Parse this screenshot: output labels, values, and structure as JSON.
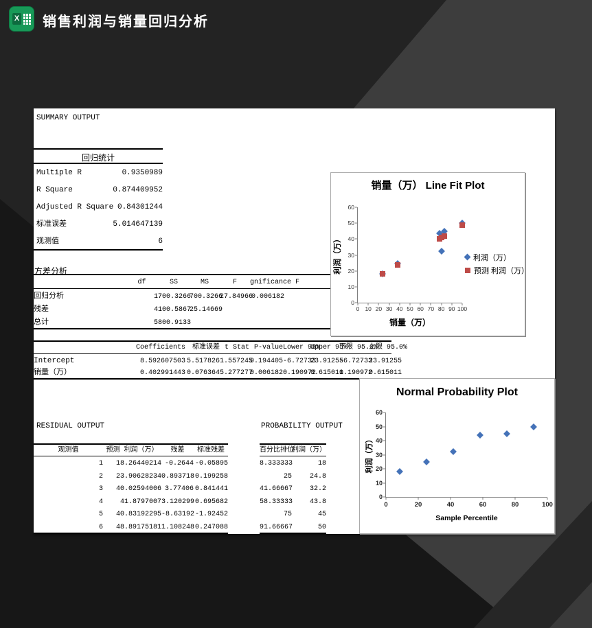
{
  "header": {
    "title": "销售利润与销量回归分析",
    "app_icon": "excel-icon"
  },
  "colors": {
    "excel_green": "#189a58",
    "series_blue": "#4472B8",
    "series_red": "#BE4B48",
    "axis_gray": "#7f7f7f",
    "background_dark": "#232323",
    "background_mid": "#3d3d3d"
  },
  "summary": {
    "section_title": "SUMMARY OUTPUT",
    "table_title": "回归统计",
    "rows": [
      [
        "Multiple R",
        "0.9350989"
      ],
      [
        "R Square",
        "0.874409952"
      ],
      [
        "Adjusted R Square",
        "0.84301244"
      ],
      [
        "标准误差",
        "5.014647139"
      ],
      [
        "观测值",
        "6"
      ]
    ]
  },
  "anova": {
    "section_title": "方差分析",
    "headers": [
      "",
      "df",
      "SS",
      "MS",
      "F",
      "gnificance F"
    ],
    "rows": [
      [
        "回归分析",
        "1",
        "700.3266",
        "700.3266",
        "27.84966",
        "0.006182"
      ],
      [
        "残差",
        "4",
        "100.5867",
        "25.14669",
        "",
        ""
      ],
      [
        "总计",
        "5",
        "800.9133",
        "",
        "",
        ""
      ]
    ]
  },
  "coefficients": {
    "headers": [
      "",
      "Coefficients",
      "标准误差",
      "t Stat",
      "P-value",
      "Lower 95%",
      "Upper 95%",
      "下限 95.0%",
      "上限 95.0%"
    ],
    "rows": [
      [
        "Intercept",
        "8.592607503",
        "5.517826",
        "1.557245",
        "0.194405",
        "-6.72733",
        "23.91255",
        "-6.72733",
        "23.91255"
      ],
      [
        "销量（万）",
        "0.402991443",
        "0.076364",
        "5.277277",
        "0.006182",
        "0.190972",
        "0.615011",
        "0.190972",
        "0.615011"
      ]
    ]
  },
  "residual_output": {
    "section_title": "RESIDUAL OUTPUT",
    "headers": [
      "观测值",
      "预测 利润（万）",
      "残差",
      "标准残差"
    ],
    "rows": [
      [
        "1",
        "18.26440214",
        "-0.2644",
        "-0.05895"
      ],
      [
        "2",
        "23.90628234",
        "0.893718",
        "0.199258"
      ],
      [
        "3",
        "40.02594006",
        "3.77406",
        "0.841441"
      ],
      [
        "4",
        "41.8797007",
        "3.120299",
        "0.695682"
      ],
      [
        "5",
        "40.83192295",
        "-8.63192",
        "-1.92452"
      ],
      [
        "6",
        "48.89175181",
        "1.108248",
        "0.247088"
      ]
    ]
  },
  "probability_output": {
    "section_title": "PROBABILITY OUTPUT",
    "headers": [
      "百分比排位",
      "利润（万）"
    ],
    "rows": [
      [
        "8.333333",
        "18"
      ],
      [
        "25",
        "24.8"
      ],
      [
        "41.66667",
        "32.2"
      ],
      [
        "58.33333",
        "43.8"
      ],
      [
        "75",
        "45"
      ],
      [
        "91.66667",
        "50"
      ]
    ]
  },
  "chart_data": [
    {
      "type": "scatter",
      "title": "销量（万） Line Fit  Plot",
      "xlabel": "销量（万）",
      "ylabel": "利润（万）",
      "xlim": [
        0,
        100
      ],
      "ylim": [
        0,
        60
      ],
      "xticks": [
        0,
        10,
        20,
        30,
        40,
        50,
        60,
        70,
        80,
        90,
        100
      ],
      "yticks": [
        0,
        10,
        20,
        30,
        40,
        50,
        60
      ],
      "grid": false,
      "legend_position": "right",
      "series": [
        {
          "name": "利润（万）",
          "marker": "diamond",
          "color": "#4472B8",
          "x": [
            24,
            38,
            78,
            82.6,
            80,
            100
          ],
          "y": [
            18,
            24.8,
            43.8,
            45,
            32.2,
            50
          ]
        },
        {
          "name": "预测 利润（万）",
          "marker": "square",
          "color": "#BE4B48",
          "x": [
            24,
            38,
            78,
            82.6,
            80,
            100
          ],
          "y": [
            18.2644,
            23.9063,
            40.0259,
            41.8797,
            40.8319,
            48.8918
          ]
        }
      ]
    },
    {
      "type": "scatter",
      "title": "Normal Probability Plot",
      "xlabel": "Sample Percentile",
      "ylabel": "利润（万）",
      "xlim": [
        0,
        100
      ],
      "ylim": [
        0,
        60
      ],
      "xticks": [
        0,
        20,
        40,
        60,
        80,
        100
      ],
      "yticks": [
        0,
        10,
        20,
        30,
        40,
        50,
        60
      ],
      "grid": false,
      "legend_position": "none",
      "series": [
        {
          "name": "利润（万）",
          "marker": "diamond",
          "color": "#4472B8",
          "x": [
            8.333333,
            25,
            41.66667,
            58.33333,
            75,
            91.66667
          ],
          "y": [
            18,
            24.8,
            32.2,
            43.8,
            45,
            50
          ]
        }
      ]
    }
  ]
}
